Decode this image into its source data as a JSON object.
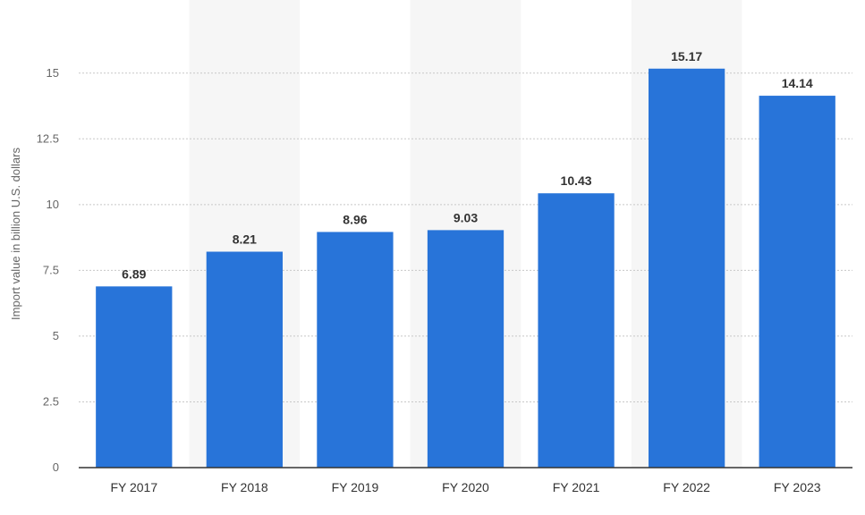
{
  "chart_data": {
    "type": "bar",
    "title": "",
    "xlabel": "",
    "ylabel": "Import value in billion U.S. dollars",
    "categories": [
      "FY 2017",
      "FY 2018",
      "FY 2019",
      "FY 2020",
      "FY 2021",
      "FY 2022",
      "FY 2023"
    ],
    "values": [
      6.89,
      8.21,
      8.96,
      9.03,
      10.43,
      15.17,
      14.14
    ],
    "value_labels": [
      "6.89",
      "8.21",
      "8.96",
      "9.03",
      "10.43",
      "15.17",
      "14.14"
    ],
    "ylim": [
      0,
      17
    ],
    "yticks": [
      0,
      2.5,
      5,
      7.5,
      10,
      12.5,
      15
    ],
    "ytick_labels": [
      "0",
      "2.5",
      "5",
      "7.5",
      "10",
      "12.5",
      "15"
    ],
    "grid": true,
    "legend": "none",
    "bar_color": "#2874d9",
    "alt_band_color": "#f6f6f6",
    "grid_color": "#c8c8c8",
    "axis_color": "#333333"
  }
}
